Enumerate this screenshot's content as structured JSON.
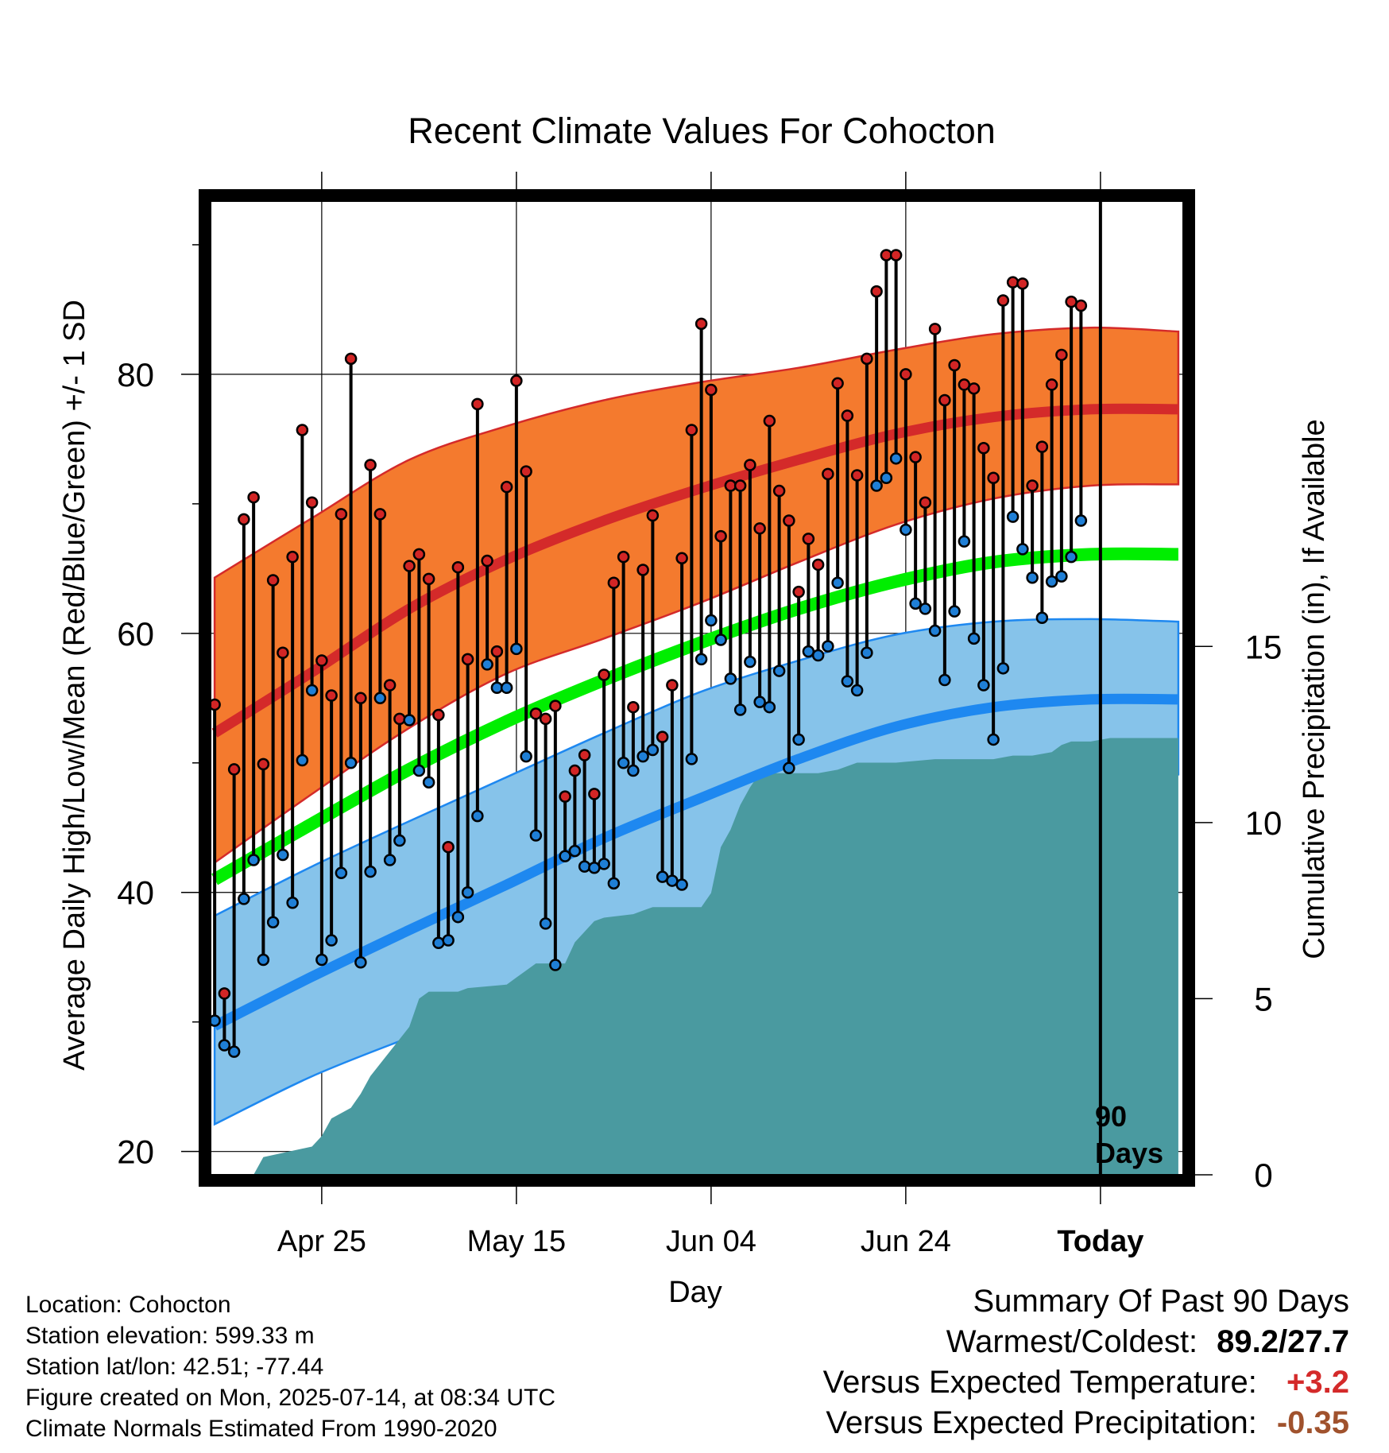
{
  "chart_data": {
    "type": "line",
    "title": "Recent Climate Values For Cohocton",
    "xlabel": "Day",
    "ylabel": "Average Daily High/Low/Mean (Red/Blue/Green) +/- 1 SD",
    "y2label": "Cumulative Precipitation (in), If Available",
    "ylim": [
      18.2,
      93.8
    ],
    "y2lim": [
      0,
      27.8
    ],
    "yticks": [
      "20",
      "40",
      "60",
      "80"
    ],
    "y2ticks": [
      "0",
      "5",
      "10",
      "15"
    ],
    "xlim": [
      -0.5,
      99.5
    ],
    "xticks": [
      {
        "x": 11,
        "label": "Apr 25"
      },
      {
        "x": 31,
        "label": "May 15"
      },
      {
        "x": 51,
        "label": "Jun 04"
      },
      {
        "x": 71,
        "label": "Jun 24"
      },
      {
        "x": 91,
        "label": "Today"
      }
    ],
    "today_marker": {
      "x": 91,
      "label_line1": "90",
      "label_line2": "Days"
    },
    "grid": true,
    "normals": {
      "x": [
        0,
        10,
        20,
        30,
        40,
        50,
        60,
        70,
        80,
        90,
        99
      ],
      "high_mean": [
        52.3,
        57.0,
        61.9,
        65.7,
        68.7,
        71.2,
        73.4,
        75.4,
        76.7,
        77.3,
        77.3
      ],
      "high_sd_upper": [
        64.3,
        68.9,
        73.4,
        76.0,
        78.0,
        79.4,
        80.5,
        81.9,
        83.1,
        83.6,
        83.3
      ],
      "high_sd_lower": [
        42.3,
        47.6,
        52.7,
        56.9,
        59.6,
        62.4,
        65.5,
        68.4,
        70.4,
        71.4,
        71.5
      ],
      "low_mean": [
        29.7,
        33.5,
        37.1,
        40.6,
        44.2,
        47.3,
        50.3,
        52.8,
        54.3,
        54.9,
        54.9
      ],
      "low_sd_upper": [
        38.2,
        42.0,
        45.5,
        48.9,
        52.3,
        55.5,
        57.9,
        59.9,
        60.9,
        61.1,
        60.9
      ],
      "low_sd_lower": [
        22.1,
        25.8,
        28.8,
        31.6,
        34.9,
        38.6,
        42.5,
        45.9,
        48.0,
        48.9,
        49.1
      ],
      "mean": [
        41.0,
        45.3,
        49.5,
        53.2,
        56.4,
        59.3,
        61.9,
        64.0,
        65.5,
        66.1,
        66.1
      ]
    },
    "series": [
      {
        "name": "High",
        "values": [
          54.5,
          32.2,
          49.5,
          68.8,
          70.5,
          49.9,
          64.1,
          58.5,
          65.9,
          75.7,
          70.1,
          57.9,
          55.2,
          69.2,
          81.2,
          55.0,
          73.0,
          69.2,
          56.0,
          53.4,
          65.2,
          66.1,
          64.2,
          53.7,
          43.5,
          65.1,
          58.0,
          77.7,
          65.6,
          58.6,
          71.3,
          79.5,
          72.5,
          53.8,
          53.4,
          54.4,
          47.4,
          49.4,
          50.6,
          47.6,
          56.8,
          63.9,
          65.9,
          54.3,
          64.9,
          69.1,
          52.0,
          56.0,
          65.8,
          75.7,
          83.9,
          78.8,
          67.5,
          71.4,
          71.4,
          73.0,
          68.1,
          76.4,
          71.0,
          68.7,
          63.2,
          67.3,
          65.3,
          72.3,
          79.3,
          76.8,
          72.2,
          81.2,
          86.4,
          89.2,
          89.2,
          80.0,
          73.6,
          70.1,
          83.5,
          78.0,
          80.7,
          79.2,
          78.9,
          74.3,
          72.0,
          85.7,
          87.1,
          87.0,
          71.4,
          74.4,
          79.2,
          81.5,
          85.6,
          85.3
        ]
      },
      {
        "name": "Low",
        "values": [
          30.1,
          28.2,
          27.7,
          39.5,
          42.5,
          34.8,
          37.7,
          42.9,
          39.2,
          50.2,
          55.6,
          34.8,
          36.3,
          41.5,
          50.0,
          34.6,
          41.6,
          55.0,
          42.5,
          44.0,
          53.3,
          49.4,
          48.5,
          36.1,
          36.3,
          38.1,
          40.0,
          45.9,
          57.6,
          55.8,
          55.8,
          58.8,
          50.5,
          44.4,
          37.6,
          34.4,
          42.8,
          43.2,
          42.0,
          41.9,
          42.2,
          40.7,
          50.0,
          49.4,
          50.5,
          51.0,
          41.2,
          40.9,
          40.6,
          50.3,
          58.0,
          61.0,
          59.5,
          56.5,
          54.1,
          57.8,
          54.7,
          54.3,
          57.1,
          49.6,
          51.8,
          58.6,
          58.3,
          59.0,
          63.9,
          56.3,
          55.6,
          58.5,
          71.4,
          72.0,
          73.5,
          68.0,
          62.3,
          61.9,
          60.2,
          56.4,
          61.7,
          67.1,
          59.6,
          56.0,
          51.8,
          57.3,
          69.0,
          66.5,
          64.3,
          61.2,
          64.0,
          64.4,
          65.9,
          68.7
        ]
      },
      {
        "name": "Cumulative Precipitation",
        "x": [
          0,
          4,
          5,
          10,
          11,
          12,
          14,
          15,
          16,
          18,
          20,
          21,
          22,
          25,
          26,
          30,
          31,
          32,
          33,
          36,
          37,
          38,
          39,
          40,
          43,
          44,
          45,
          46,
          48,
          49,
          50,
          51,
          52,
          53,
          54,
          55,
          56,
          57,
          60,
          62,
          64,
          66,
          67,
          70,
          74,
          76,
          78,
          80,
          82,
          84,
          86,
          87,
          88,
          90,
          92,
          94,
          99
        ],
        "values": [
          0,
          0,
          0.5,
          0.8,
          1.1,
          1.6,
          1.9,
          2.3,
          2.8,
          3.5,
          4.2,
          5.0,
          5.2,
          5.2,
          5.3,
          5.4,
          5.6,
          5.8,
          6.0,
          6.0,
          6.6,
          6.9,
          7.2,
          7.3,
          7.4,
          7.5,
          7.6,
          7.6,
          7.6,
          7.6,
          7.6,
          8.0,
          9.3,
          9.8,
          10.5,
          11.0,
          11.4,
          11.4,
          11.4,
          11.4,
          11.5,
          11.7,
          11.7,
          11.7,
          11.8,
          11.8,
          11.8,
          11.8,
          11.9,
          11.9,
          12.0,
          12.2,
          12.3,
          12.3,
          12.4,
          12.4,
          12.4
        ]
      }
    ]
  },
  "meta": {
    "location": "Location: Cohocton",
    "elevation": "Station elevation: 599.33 m",
    "latlon": "Station lat/lon: 42.51; -77.44",
    "created": "Figure created on Mon, 2025-07-14, at 08:34 UTC",
    "normals": "Climate Normals Estimated From 1990-2020"
  },
  "summary": {
    "title": "Summary Of Past 90 Days",
    "warmest_coldest_label": "Warmest/Coldest:",
    "warmest_coldest_value": "89.2/27.7",
    "temp_label": "Versus Expected Temperature:",
    "temp_value": "+3.2",
    "precip_label": "Versus Expected Precipitation:",
    "precip_value": "-0.35"
  },
  "colors": {
    "high_band": "#f47a2e",
    "high_line": "#d42a2a",
    "low_band": "#86c3ea",
    "low_line": "#1e88f0",
    "low_edge": "#1e88f0",
    "mean_line": "#00ee00",
    "precip": "#4a9aa0",
    "high_dot": "#d22525",
    "low_dot": "#1f7fd6",
    "temp_value": "#d42a2a",
    "precip_value": "#a0522d"
  }
}
